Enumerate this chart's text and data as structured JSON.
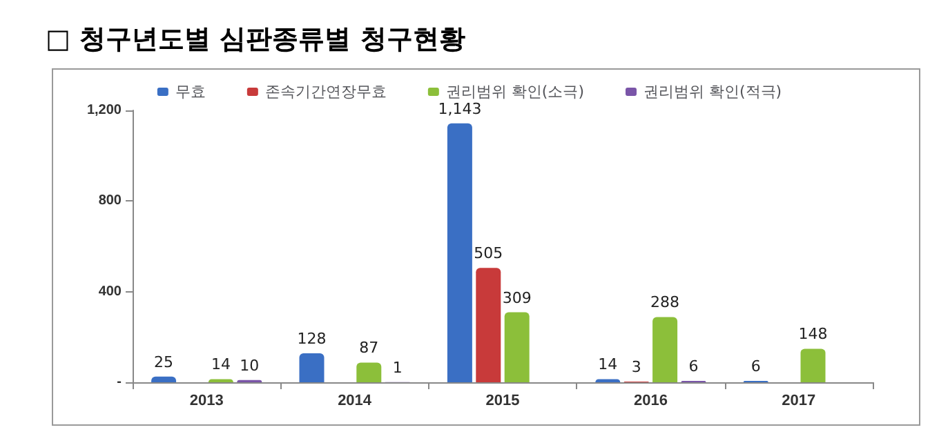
{
  "chart_data": {
    "type": "bar",
    "title": "□ 청구년도별 심판종류별 청구현황",
    "categories": [
      "2013",
      "2014",
      "2015",
      "2016",
      "2017"
    ],
    "series": [
      {
        "name": "무효",
        "color": "#3a6fc4",
        "values": [
          25,
          128,
          1143,
          14,
          6
        ],
        "value_labels": [
          "25",
          "128",
          "1,143",
          "14",
          "6"
        ]
      },
      {
        "name": "존속기간연장무효",
        "color": "#c83a3a",
        "values": [
          null,
          null,
          505,
          3,
          null
        ],
        "value_labels": [
          null,
          null,
          "505",
          "3",
          null
        ]
      },
      {
        "name": "권리범위 확인(소극)",
        "color": "#8cbf3a",
        "values": [
          14,
          87,
          309,
          288,
          148
        ],
        "value_labels": [
          "14",
          "87",
          "309",
          "288",
          "148"
        ]
      },
      {
        "name": "권리범위 확인(적극)",
        "color": "#7a55a8",
        "values": [
          10,
          1,
          null,
          6,
          null
        ],
        "value_labels": [
          "10",
          "1",
          null,
          "6",
          null
        ]
      }
    ],
    "ylim": [
      0,
      1200
    ],
    "yticks": [
      {
        "value": 0,
        "label": "-"
      },
      400,
      800,
      {
        "value": 1200,
        "label": "1,200"
      }
    ],
    "grid": false,
    "legend": "top"
  }
}
